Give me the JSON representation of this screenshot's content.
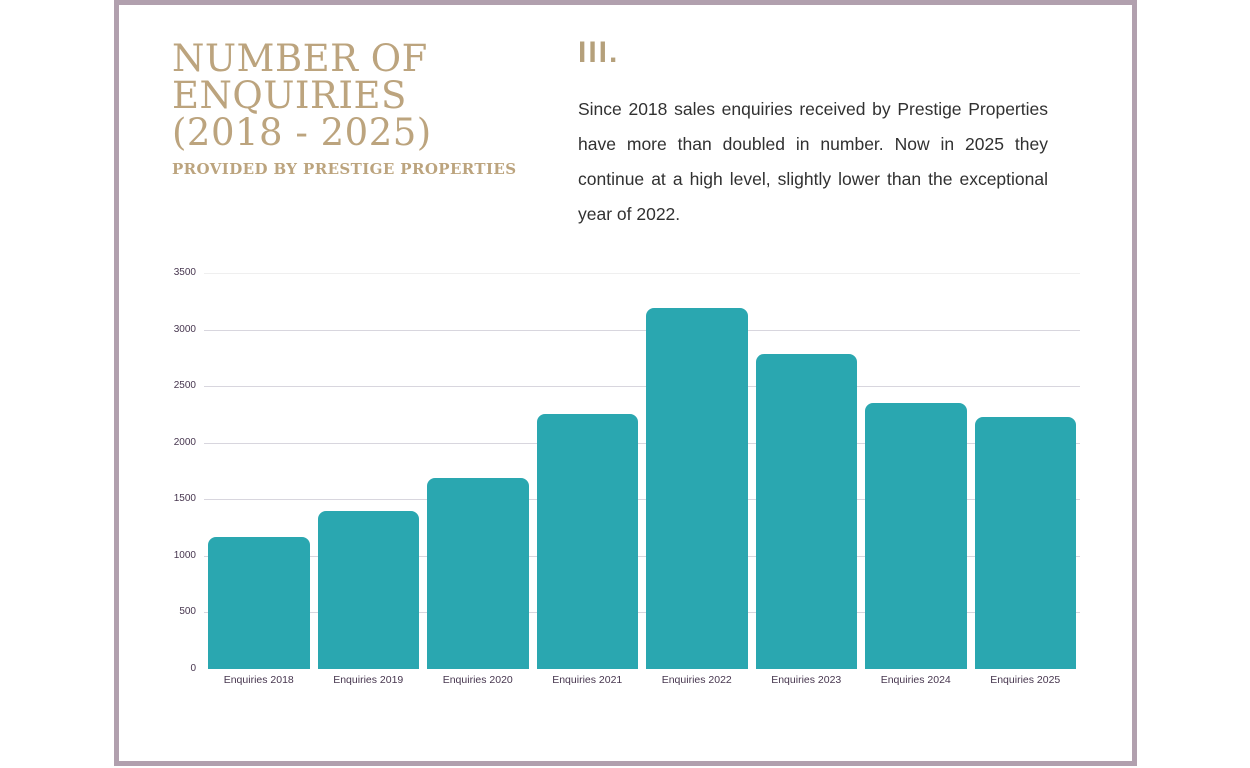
{
  "frame": {
    "border_color": "#b1a0ae"
  },
  "header": {
    "title_lines": [
      "NUMBER OF",
      "ENQUIRIES",
      "(2018 - 2025)"
    ],
    "subtitle": "PROVIDED BY PRESTIGE PROPERTIES",
    "accent_color": "#bca47e"
  },
  "section": {
    "numeral": "III.",
    "body": "Since 2018 sales enquiries received by Prestige Properties have more than doubled in number. Now in 2025 they continue at a high level, slightly lower than the exceptional year of 2022."
  },
  "chart_data": {
    "type": "bar",
    "categories": [
      "Enquiries 2018",
      "Enquiries 2019",
      "Enquiries 2020",
      "Enquiries 2021",
      "Enquiries 2022",
      "Enquiries 2023",
      "Enquiries 2024",
      "Enquiries 2025"
    ],
    "values": [
      1165,
      1400,
      1685,
      2255,
      3190,
      2780,
      2350,
      2225
    ],
    "title": "Number of Enquiries (2018 - 2025)",
    "xlabel": "",
    "ylabel": "",
    "ylim": [
      0,
      3500
    ],
    "yticks": [
      0,
      500,
      1000,
      1500,
      2000,
      2500,
      3000,
      3500
    ],
    "grid": true,
    "legend": "none",
    "bar_color": "#2aa7b0",
    "grid_color": "#d8d6de",
    "top_grid_color": "#efefef",
    "axis_label_color": "#47364f"
  }
}
